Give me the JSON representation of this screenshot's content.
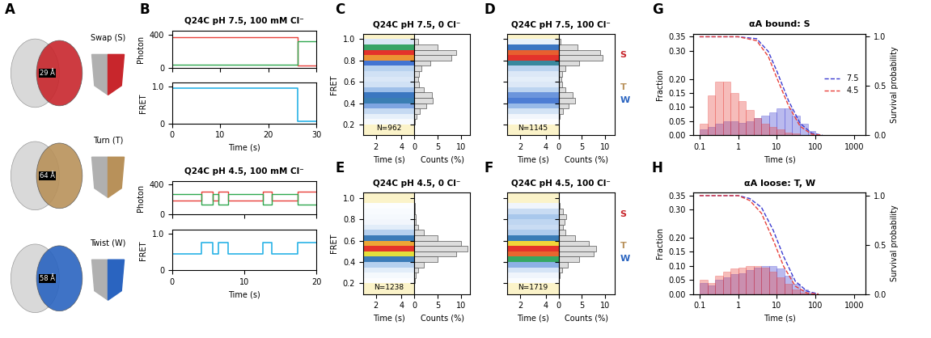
{
  "panel_labels": [
    "A",
    "B",
    "C",
    "D",
    "E",
    "F",
    "G",
    "H"
  ],
  "diagram": {
    "items": [
      {
        "name": "Swap (S)",
        "distance": "29 Å",
        "color": "#c8262c"
      },
      {
        "name": "Turn (T)",
        "distance": "64 Å",
        "color": "#b8915a"
      },
      {
        "name": "Twist (W)",
        "distance": "58 Å",
        "color": "#2a64c0"
      }
    ]
  },
  "chart_data": [
    {
      "type": "line",
      "title": "Q24C pH 7.5, 100 mM Cl⁻",
      "x": [
        0,
        26,
        26,
        30
      ],
      "xlim": [
        0,
        30
      ],
      "xticks": [
        0,
        10,
        20,
        30
      ],
      "xlabel": "Time (s)",
      "photon_ylabel": "Photon",
      "photon_ylim": [
        0,
        450
      ],
      "photon_yticks": [
        0,
        400
      ],
      "photon": [
        {
          "color": "#e8403a",
          "values": [
            370,
            370,
            30,
            30
          ]
        },
        {
          "color": "#2fa84f",
          "values": [
            40,
            40,
            320,
            320
          ]
        }
      ],
      "fret_ylabel": "FRET",
      "fret_ylim": [
        0,
        1.1
      ],
      "fret_yticks": [
        0,
        1.0
      ],
      "fret": {
        "color": "#2ab3e6",
        "values": [
          0.95,
          0.95,
          0.05,
          0.05
        ]
      }
    },
    {
      "type": "line",
      "title": "Q24C pH 4.5, 100 mM Cl⁻",
      "x": [
        0,
        4,
        4,
        5.6,
        5.6,
        6.4,
        6.4,
        7.7,
        7.7,
        12.6,
        12.6,
        13.8,
        13.8,
        17.4,
        17.4,
        20
      ],
      "xlim": [
        0,
        20
      ],
      "xticks": [
        0,
        10,
        20
      ],
      "xlabel": "Time (s)",
      "photon_ylabel": "Photon",
      "photon_ylim": [
        0,
        450
      ],
      "photon_yticks": [
        0,
        400
      ],
      "photon": [
        {
          "color": "#e8403a",
          "values": [
            190,
            190,
            310,
            310,
            190,
            190,
            310,
            310,
            190,
            190,
            310,
            310,
            190,
            190,
            310,
            310
          ]
        },
        {
          "color": "#2fa84f",
          "values": [
            270,
            270,
            130,
            130,
            270,
            270,
            130,
            130,
            270,
            270,
            130,
            130,
            270,
            270,
            130,
            130
          ]
        }
      ],
      "fret_ylabel": "FRET",
      "fret_ylim": [
        0,
        1.1
      ],
      "fret_yticks": [
        0,
        1.0
      ],
      "fret": {
        "color": "#2ab3e6",
        "values": [
          0.45,
          0.45,
          0.75,
          0.75,
          0.45,
          0.45,
          0.75,
          0.75,
          0.45,
          0.45,
          0.75,
          0.75,
          0.45,
          0.45,
          0.75,
          0.75
        ]
      }
    },
    {
      "type": "heatmap",
      "title": "Q24C pH 7.5, 0 Cl⁻",
      "n_label": "N=962",
      "bins": [
        0,
        0.05,
        0.1,
        0.15,
        0.2,
        0.25,
        0.3,
        0.35,
        0.4,
        0.45,
        0.5,
        0.55,
        0.6,
        0.65,
        0.7,
        0.75,
        0.8,
        0.85,
        0.9,
        0.95,
        1.0
      ],
      "counts": [
        0,
        0,
        0,
        0,
        0.2,
        0.5,
        1.2,
        2.5,
        4.0,
        3.8,
        2.0,
        1.0,
        0.8,
        1.0,
        1.5,
        3.5,
        8.0,
        9.0,
        5.0,
        0.8
      ],
      "xlim": [
        1,
        5
      ],
      "xticks": [
        2,
        4
      ],
      "xlabel": "Time (s)",
      "hist_xlim": [
        0,
        12
      ],
      "hist_xticks": [
        0,
        5,
        10
      ],
      "hist_xlabel": "Counts (%)",
      "ylim": [
        0.1,
        1.05
      ],
      "yticks": [
        0.2,
        0.4,
        0.6,
        0.8,
        1.0
      ],
      "ylabel": "FRET"
    },
    {
      "type": "heatmap",
      "title": "Q24C pH 7.5, 100 Cl⁻",
      "n_label": "N=1145",
      "bins": [
        0,
        0.05,
        0.1,
        0.15,
        0.2,
        0.25,
        0.3,
        0.35,
        0.4,
        0.45,
        0.5,
        0.55,
        0.6,
        0.65,
        0.7,
        0.75,
        0.8,
        0.85,
        0.9,
        0.95,
        1.0
      ],
      "counts": [
        0,
        0,
        0,
        0,
        0.1,
        0.3,
        1.0,
        2.2,
        3.5,
        3.0,
        1.5,
        0.8,
        0.6,
        0.8,
        1.5,
        4.5,
        9.5,
        9.0,
        4.0,
        0.5
      ],
      "xlim": [
        1,
        5
      ],
      "xticks": [
        2,
        4
      ],
      "xlabel": "Time (s)",
      "hist_xlim": [
        0,
        12
      ],
      "hist_xticks": [
        0,
        5,
        10
      ],
      "hist_xlabel": "Counts (%)",
      "ylim": [
        0.1,
        1.05
      ],
      "yticks": [
        0.2,
        0.4,
        0.6,
        0.8,
        1.0
      ],
      "tick_labels": "x",
      "annotations": [
        {
          "text": "S",
          "y": 0.85,
          "color": "#c8262c"
        },
        {
          "text": "T",
          "y": 0.55,
          "color": "#b8915a"
        },
        {
          "text": "W",
          "y": 0.43,
          "color": "#2a64c0"
        }
      ]
    },
    {
      "type": "heatmap",
      "title": "Q24C pH 4.5, 0 Cl⁻",
      "n_label": "N=1238",
      "bins": [
        0,
        0.05,
        0.1,
        0.15,
        0.2,
        0.25,
        0.3,
        0.35,
        0.4,
        0.45,
        0.5,
        0.55,
        0.6,
        0.65,
        0.7,
        0.75,
        0.8,
        0.85,
        0.9,
        0.95,
        1.0
      ],
      "counts": [
        0,
        0,
        0,
        0,
        0.1,
        0.3,
        0.8,
        2.0,
        5.0,
        9.0,
        11.5,
        10.0,
        5.0,
        2.0,
        0.8,
        0.4,
        0.3,
        0.2,
        0.1,
        0
      ],
      "xlim": [
        1,
        5
      ],
      "xticks": [
        2,
        4
      ],
      "xlabel": "Time (s)",
      "hist_xlim": [
        0,
        12
      ],
      "hist_xticks": [
        0,
        5,
        10
      ],
      "hist_xlabel": "Counts (%)",
      "ylim": [
        0.1,
        1.05
      ],
      "yticks": [
        0.2,
        0.4,
        0.6,
        0.8,
        1.0
      ],
      "ylabel": "FRET"
    },
    {
      "type": "heatmap",
      "title": "Q24C pH 4.5, 100 Cl⁻",
      "n_label": "N=1719",
      "bins": [
        0,
        0.05,
        0.1,
        0.15,
        0.2,
        0.25,
        0.3,
        0.35,
        0.4,
        0.45,
        0.5,
        0.55,
        0.6,
        0.65,
        0.7,
        0.75,
        0.8,
        0.85,
        0.9,
        0.95,
        1.0
      ],
      "counts": [
        0,
        0,
        0,
        0,
        0.1,
        0.3,
        0.8,
        2.0,
        4.5,
        7.5,
        8.0,
        6.5,
        3.5,
        1.5,
        1.0,
        1.2,
        1.6,
        1.0,
        0.3,
        0
      ],
      "xlim": [
        1,
        5
      ],
      "xticks": [
        2,
        4
      ],
      "xlabel": "Time (s)",
      "hist_xlim": [
        0,
        12
      ],
      "hist_xticks": [
        0,
        5,
        10
      ],
      "hist_xlabel": "Counts (%)",
      "ylim": [
        0.1,
        1.05
      ],
      "yticks": [
        0.2,
        0.4,
        0.6,
        0.8,
        1.0
      ],
      "tick_labels": "x",
      "annotations": [
        {
          "text": "S",
          "y": 0.85,
          "color": "#c8262c"
        },
        {
          "text": "T",
          "y": 0.55,
          "color": "#b8915a"
        },
        {
          "text": "W",
          "y": 0.43,
          "color": "#2a64c0"
        }
      ]
    },
    {
      "type": "bar",
      "title": "αA bound: S",
      "log": "x",
      "xlabel": "Time (s)",
      "ylabel": "Fraction",
      "y2label": "Survival probability",
      "bins": [
        0.1,
        0.16,
        0.25,
        0.4,
        0.63,
        1,
        1.6,
        2.5,
        4,
        6.3,
        10,
        16,
        25,
        40,
        63,
        100
      ],
      "series": [
        {
          "color": "#3b3bd1",
          "values": [
            0.02,
            0.03,
            0.04,
            0.05,
            0.05,
            0.045,
            0.05,
            0.06,
            0.07,
            0.08,
            0.095,
            0.095,
            0.07,
            0.04,
            0.015
          ]
        },
        {
          "color": "#e8403a",
          "values": [
            0.04,
            0.14,
            0.19,
            0.19,
            0.15,
            0.12,
            0.09,
            0.06,
            0.04,
            0.03,
            0.02,
            0.01,
            0.005,
            0,
            0
          ]
        }
      ],
      "survival": [
        {
          "name": "7.5",
          "color": "#3b3bd1",
          "line_style": "dashed",
          "x": [
            0.1,
            1,
            3,
            6,
            10,
            20,
            40,
            80,
            150
          ],
          "values": [
            1,
            1,
            0.98,
            0.85,
            0.65,
            0.35,
            0.12,
            0.02,
            0
          ]
        },
        {
          "name": "4.5",
          "color": "#e8403a",
          "line_style": "dashed",
          "x": [
            0.1,
            1,
            3,
            6,
            10,
            20,
            40,
            80,
            150
          ],
          "values": [
            1,
            1,
            0.96,
            0.8,
            0.58,
            0.3,
            0.09,
            0.01,
            0
          ]
        }
      ],
      "xlim": [
        0.07,
        2000
      ],
      "xticks": [
        0.1,
        1,
        10,
        100,
        1000
      ],
      "ylim": [
        0,
        0.36
      ],
      "yticks": [
        {
          "value": 0,
          "label": "0.00"
        },
        0.05,
        {
          "value": 0.1,
          "label": "0.10"
        },
        0.15,
        {
          "value": 0.2,
          "label": "0.20"
        },
        {
          "value": 0.3,
          "label": "0.30"
        },
        0.35
      ],
      "y2lim": [
        0,
        1.03
      ],
      "y2ticks": [
        0.0,
        0.5,
        1.0
      ],
      "legend": "center right"
    },
    {
      "type": "bar",
      "title": "αA loose: T, W",
      "log": "x",
      "xlabel": "Time (s)",
      "ylabel": "Fraction",
      "y2label": "Survival probability",
      "bins": [
        0.1,
        0.16,
        0.25,
        0.4,
        0.63,
        1,
        1.6,
        2.5,
        4,
        6.3,
        10,
        16,
        25,
        40,
        63,
        100
      ],
      "series": [
        {
          "color": "#3b3bd1",
          "values": [
            0.04,
            0.03,
            0.05,
            0.06,
            0.07,
            0.075,
            0.085,
            0.095,
            0.1,
            0.1,
            0.09,
            0.065,
            0.035,
            0.015,
            0.005
          ]
        },
        {
          "color": "#e8403a",
          "values": [
            0.05,
            0.04,
            0.065,
            0.08,
            0.09,
            0.095,
            0.1,
            0.1,
            0.095,
            0.08,
            0.06,
            0.035,
            0.015,
            0.005,
            0
          ]
        }
      ],
      "survival": [
        {
          "color": "#3b3bd1",
          "line_style": "dashed",
          "x": [
            0.1,
            1,
            2,
            4,
            8,
            15,
            30,
            60,
            120
          ],
          "values": [
            1,
            1,
            0.97,
            0.88,
            0.65,
            0.38,
            0.13,
            0.03,
            0
          ]
        },
        {
          "color": "#e8403a",
          "line_style": "dashed",
          "x": [
            0.1,
            1,
            2,
            4,
            8,
            15,
            30,
            60,
            120
          ],
          "values": [
            1,
            1,
            0.95,
            0.82,
            0.55,
            0.28,
            0.08,
            0.01,
            0
          ]
        }
      ],
      "xlim": [
        0.07,
        2000
      ],
      "xticks": [
        0.1,
        1,
        10,
        100,
        1000
      ],
      "ylim": [
        0,
        0.36
      ],
      "yticks": [
        {
          "value": 0,
          "label": "0.00"
        },
        0.05,
        {
          "value": 0.1,
          "label": "0.10"
        },
        0.15,
        {
          "value": 0.2,
          "label": "0.20"
        },
        {
          "value": 0.3,
          "label": "0.30"
        },
        0.35
      ],
      "y2lim": [
        0,
        1.03
      ],
      "y2ticks": [
        0.0,
        0.5,
        1.0
      ]
    }
  ]
}
